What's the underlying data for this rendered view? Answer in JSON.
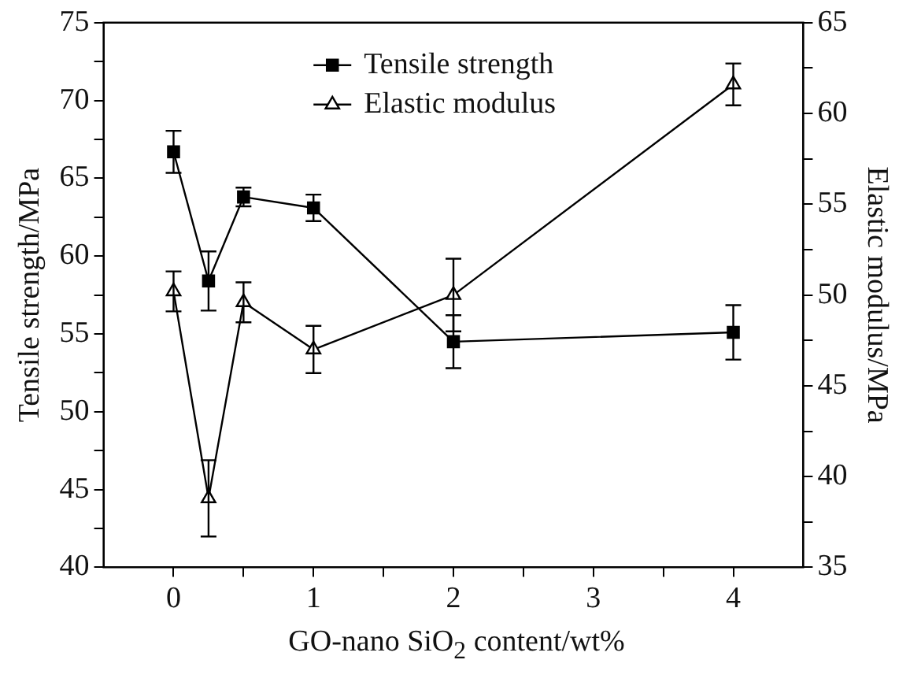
{
  "chart_data": {
    "type": "line",
    "xlabel": "GO-nano SiO$_{2}$ content/wt%",
    "ylabel": "Tensile strength/MPa",
    "y2label": "Elastic modulus/MPa",
    "x": [
      0,
      0.25,
      0.5,
      1,
      2,
      4
    ],
    "xlim": [
      -0.5,
      4.5
    ],
    "xticks": [
      0,
      {
        "value": 0.5,
        "label": null
      },
      1,
      {
        "value": 1.5,
        "label": null
      },
      2,
      {
        "value": 2.5,
        "label": null
      },
      3,
      {
        "value": 3.5,
        "label": null
      },
      4
    ],
    "ylim": [
      40,
      75
    ],
    "yticks": [
      40,
      {
        "value": 42.5,
        "label": null
      },
      45,
      {
        "value": 47.5,
        "label": null
      },
      50,
      {
        "value": 52.5,
        "label": null
      },
      55,
      {
        "value": 57.5,
        "label": null
      },
      60,
      {
        "value": 62.5,
        "label": null
      },
      65,
      {
        "value": 67.5,
        "label": null
      },
      70,
      {
        "value": 72.5,
        "label": null
      },
      75
    ],
    "y2lim": [
      35,
      65
    ],
    "y2ticks": [
      35,
      {
        "value": 37.5,
        "label": null
      },
      40,
      {
        "value": 42.5,
        "label": null
      },
      45,
      {
        "value": 47.5,
        "label": null
      },
      50,
      {
        "value": 52.5,
        "label": null
      },
      55,
      {
        "value": 57.5,
        "label": null
      },
      60,
      {
        "value": 62.5,
        "label": null
      },
      65
    ],
    "series": [
      {
        "name": "Tensile strength",
        "color": "#000000",
        "marker": "square",
        "values": [
          66.7,
          58.4,
          63.8,
          63.1,
          54.5,
          55.1
        ],
        "errors": [
          1.35,
          1.9,
          0.6,
          0.85,
          1.7,
          1.75
        ]
      },
      {
        "name": "Elastic modulus",
        "color": "#000000",
        "marker": "triangle",
        "axis": "y2",
        "values": [
          50.2,
          38.8,
          49.6,
          47.0,
          50.0,
          61.6
        ],
        "errors": [
          1.1,
          2.1,
          1.1,
          1.3,
          2.0,
          1.15
        ]
      }
    ],
    "legend": "top",
    "grid": false,
    "line_style": "solid"
  }
}
